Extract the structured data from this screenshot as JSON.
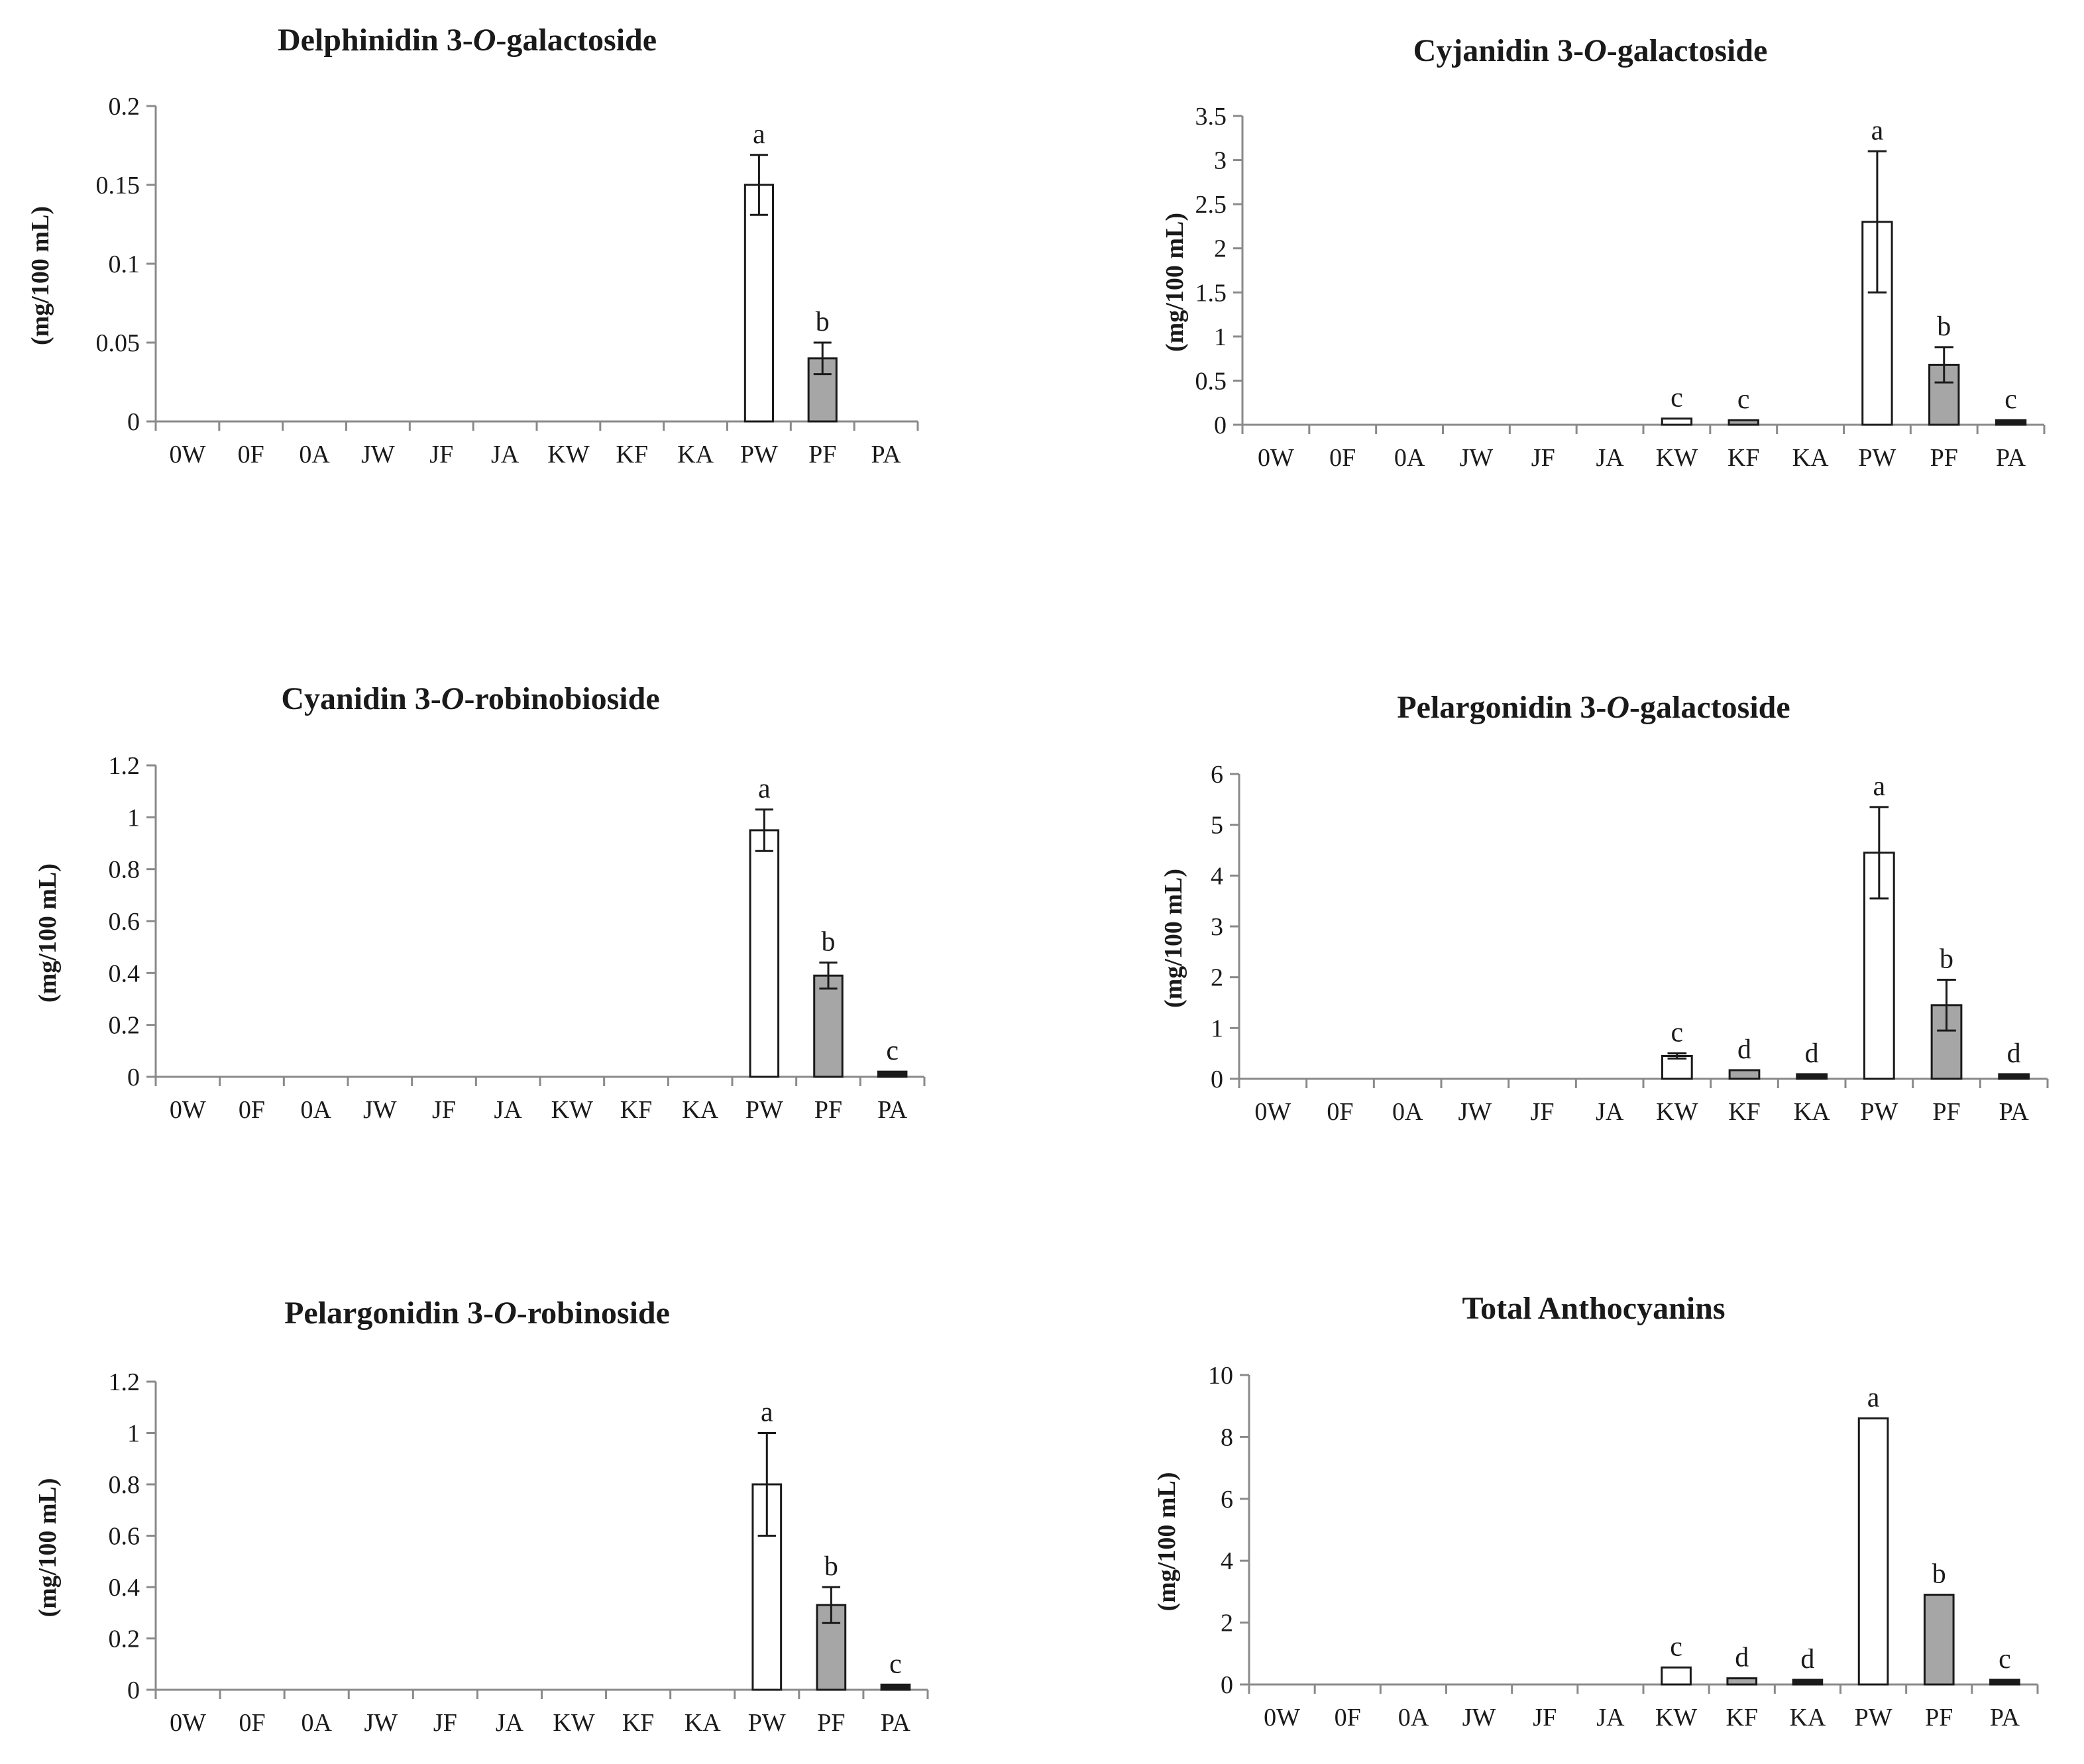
{
  "chart_data": [
    {
      "type": "bar",
      "title": "Delphinidin 3-O-galactoside",
      "title_parts": [
        {
          "t": "Delphinidin 3-",
          "i": false
        },
        {
          "t": "O",
          "i": true
        },
        {
          "t": "-galactoside",
          "i": false
        }
      ],
      "ylabel": "(mg/100 mL)",
      "xlabel": "",
      "ylim": [
        0,
        0.2
      ],
      "ticks": [
        "0",
        "0.05",
        "0.1",
        "0.15",
        "0.2"
      ],
      "tick_values": [
        0,
        0.05,
        0.1,
        0.15,
        0.2
      ],
      "categories": [
        "0W",
        "0F",
        "0A",
        "JW",
        "JF",
        "JA",
        "KW",
        "KF",
        "KA",
        "PW",
        "PF",
        "PA"
      ],
      "values": [
        0,
        0,
        0,
        0,
        0,
        0,
        0,
        0,
        0,
        0.15,
        0.04,
        0
      ],
      "errors": [
        0,
        0,
        0,
        0,
        0,
        0,
        0,
        0,
        0,
        0.019,
        0.01,
        0
      ],
      "labels": [
        "",
        "",
        "",
        "",
        "",
        "",
        "",
        "",
        "",
        "a",
        "b",
        ""
      ],
      "fills": [
        "#ffffff",
        "#a6a6a6",
        "#1a1a1a",
        "#ffffff",
        "#a6a6a6",
        "#1a1a1a",
        "#ffffff",
        "#a6a6a6",
        "#1a1a1a",
        "#ffffff",
        "#a6a6a6",
        "#1a1a1a"
      ],
      "legend": "none",
      "grid": false
    },
    {
      "type": "bar",
      "title": "Cyjanidin 3-O-galactoside",
      "title_parts": [
        {
          "t": "Cyjanidin 3-",
          "i": false
        },
        {
          "t": "O",
          "i": true
        },
        {
          "t": "-galactoside",
          "i": false
        }
      ],
      "ylabel": "(mg/100 mL)",
      "xlabel": "",
      "ylim": [
        0,
        3.5
      ],
      "ticks": [
        "0",
        "0.5",
        "1",
        "1.5",
        "2",
        "2.5",
        "3",
        "3.5"
      ],
      "tick_values": [
        0,
        0.5,
        1,
        1.5,
        2,
        2.5,
        3,
        3.5
      ],
      "categories": [
        "0W",
        "0F",
        "0A",
        "JW",
        "JF",
        "JA",
        "KW",
        "KF",
        "KA",
        "PW",
        "PF",
        "PA"
      ],
      "values": [
        0,
        0,
        0,
        0,
        0,
        0,
        0.07,
        0.03,
        0,
        2.3,
        0.68,
        0.04
      ],
      "errors": [
        0,
        0,
        0,
        0,
        0,
        0,
        0,
        0,
        0,
        0.8,
        0.2,
        0
      ],
      "labels": [
        "",
        "",
        "",
        "",
        "",
        "",
        "c",
        "c",
        "",
        "a",
        "b",
        "c"
      ],
      "fills": [
        "#ffffff",
        "#a6a6a6",
        "#1a1a1a",
        "#ffffff",
        "#a6a6a6",
        "#1a1a1a",
        "#ffffff",
        "#a6a6a6",
        "#1a1a1a",
        "#ffffff",
        "#a6a6a6",
        "#1a1a1a"
      ],
      "legend": "none",
      "grid": false
    },
    {
      "type": "bar",
      "title": "Cyanidin 3-O-robinobioside",
      "title_parts": [
        {
          "t": "Cyanidin 3-",
          "i": false
        },
        {
          "t": "O",
          "i": true
        },
        {
          "t": "-robinobioside",
          "i": false
        }
      ],
      "ylabel": "(mg/100 mL)",
      "xlabel": "",
      "ylim": [
        0,
        1.2
      ],
      "ticks": [
        "0",
        "0.2",
        "0.4",
        "0.6",
        "0.8",
        "1",
        "1.2"
      ],
      "tick_values": [
        0,
        0.2,
        0.4,
        0.6,
        0.8,
        1,
        1.2
      ],
      "categories": [
        "0W",
        "0F",
        "0A",
        "JW",
        "JF",
        "JA",
        "KW",
        "KF",
        "KA",
        "PW",
        "PF",
        "PA"
      ],
      "values": [
        0,
        0,
        0,
        0,
        0,
        0,
        0,
        0,
        0,
        0.95,
        0.39,
        0.02
      ],
      "errors": [
        0,
        0,
        0,
        0,
        0,
        0,
        0,
        0,
        0,
        0.08,
        0.05,
        0
      ],
      "labels": [
        "",
        "",
        "",
        "",
        "",
        "",
        "",
        "",
        "",
        "a",
        "b",
        "c"
      ],
      "fills": [
        "#ffffff",
        "#a6a6a6",
        "#1a1a1a",
        "#ffffff",
        "#a6a6a6",
        "#1a1a1a",
        "#ffffff",
        "#a6a6a6",
        "#1a1a1a",
        "#ffffff",
        "#a6a6a6",
        "#1a1a1a"
      ],
      "legend": "none",
      "grid": false
    },
    {
      "type": "bar",
      "title": "Pelargonidin 3-O-galactoside",
      "title_parts": [
        {
          "t": "Pelargonidin 3-",
          "i": false
        },
        {
          "t": "O",
          "i": true
        },
        {
          "t": "-galactoside",
          "i": false
        }
      ],
      "ylabel": "(mg/100 mL)",
      "xlabel": "",
      "ylim": [
        0,
        6
      ],
      "ticks": [
        "0",
        "1",
        "2",
        "3",
        "4",
        "5",
        "6"
      ],
      "tick_values": [
        0,
        1,
        2,
        3,
        4,
        5,
        6
      ],
      "categories": [
        "0W",
        "0F",
        "0A",
        "JW",
        "JF",
        "JA",
        "KW",
        "KF",
        "KA",
        "PW",
        "PF",
        "PA"
      ],
      "values": [
        0,
        0,
        0,
        0,
        0,
        0,
        0.45,
        0.17,
        0.04,
        4.45,
        1.45,
        0.08
      ],
      "errors": [
        0,
        0,
        0,
        0,
        0,
        0,
        0.05,
        0,
        0,
        0.9,
        0.5,
        0
      ],
      "labels": [
        "",
        "",
        "",
        "",
        "",
        "",
        "c",
        "d",
        "d",
        "a",
        "b",
        "d"
      ],
      "fills": [
        "#ffffff",
        "#a6a6a6",
        "#1a1a1a",
        "#ffffff",
        "#a6a6a6",
        "#1a1a1a",
        "#ffffff",
        "#a6a6a6",
        "#1a1a1a",
        "#ffffff",
        "#a6a6a6",
        "#1a1a1a"
      ],
      "legend": "none",
      "grid": false
    },
    {
      "type": "bar",
      "title": "Pelargonidin 3-O-robinoside",
      "title_parts": [
        {
          "t": "Pelargonidin 3-",
          "i": false
        },
        {
          "t": "O",
          "i": true
        },
        {
          "t": "-robinoside",
          "i": false
        }
      ],
      "ylabel": "(mg/100 mL)",
      "xlabel": "",
      "ylim": [
        0,
        1.2
      ],
      "ticks": [
        "0",
        "0.2",
        "0.4",
        "0.6",
        "0.8",
        "1",
        "1.2"
      ],
      "tick_values": [
        0,
        0.2,
        0.4,
        0.6,
        0.8,
        1,
        1.2
      ],
      "categories": [
        "0W",
        "0F",
        "0A",
        "JW",
        "JF",
        "JA",
        "KW",
        "KF",
        "KA",
        "PW",
        "PF",
        "PA"
      ],
      "values": [
        0,
        0,
        0,
        0,
        0,
        0,
        0,
        0,
        0,
        0.8,
        0.33,
        0.02
      ],
      "errors": [
        0,
        0,
        0,
        0,
        0,
        0,
        0,
        0,
        0,
        0.2,
        0.07,
        0
      ],
      "labels": [
        "",
        "",
        "",
        "",
        "",
        "",
        "",
        "",
        "",
        "a",
        "b",
        "c"
      ],
      "fills": [
        "#ffffff",
        "#a6a6a6",
        "#1a1a1a",
        "#ffffff",
        "#a6a6a6",
        "#1a1a1a",
        "#ffffff",
        "#a6a6a6",
        "#1a1a1a",
        "#ffffff",
        "#a6a6a6",
        "#1a1a1a"
      ],
      "legend": "none",
      "grid": false
    },
    {
      "type": "bar",
      "title": "Total Anthocyanins",
      "title_parts": [
        {
          "t": "Total Anthocyanins",
          "i": false
        }
      ],
      "ylabel": "(mg/100 mL)",
      "xlabel": "",
      "ylim": [
        0,
        10
      ],
      "ticks": [
        "0",
        "2",
        "4",
        "6",
        "8",
        "10"
      ],
      "tick_values": [
        0,
        2,
        4,
        6,
        8,
        10
      ],
      "categories": [
        "0W",
        "0F",
        "0A",
        "JW",
        "JF",
        "JA",
        "KW",
        "KF",
        "KA",
        "PW",
        "PF",
        "PA"
      ],
      "values": [
        0,
        0,
        0,
        0,
        0,
        0,
        0.55,
        0.2,
        0.05,
        8.6,
        2.9,
        0.15
      ],
      "errors": [
        0,
        0,
        0,
        0,
        0,
        0,
        0,
        0,
        0,
        0,
        0,
        0
      ],
      "labels": [
        "",
        "",
        "",
        "",
        "",
        "",
        "c",
        "d",
        "d",
        "a",
        "b",
        "c"
      ],
      "fills": [
        "#ffffff",
        "#a6a6a6",
        "#1a1a1a",
        "#ffffff",
        "#a6a6a6",
        "#1a1a1a",
        "#ffffff",
        "#a6a6a6",
        "#1a1a1a",
        "#ffffff",
        "#a6a6a6",
        "#1a1a1a"
      ],
      "legend": "none",
      "grid": false
    }
  ]
}
